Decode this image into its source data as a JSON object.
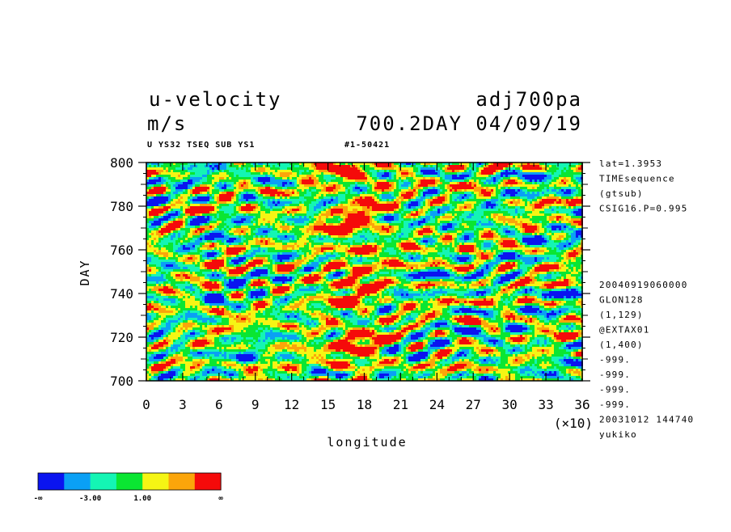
{
  "title_left": "u-velocity",
  "title_right": "adj700pa",
  "units": "m/s",
  "time_label": "700.2DAY 04/09/19",
  "sub_left": "U YS32 TSEQ SUB YS1",
  "sub_right": "#1-50421",
  "info_lines": [
    "lat=1.3953",
    "TIMEsequence",
    "(gtsub)",
    "CSIG16.P=0.995"
  ],
  "info_lines2": [
    "20040919060000",
    "GLON128",
    "(1,129)",
    "@EXTAX01",
    "(1,400)",
    "-999.",
    "-999.",
    "-999.",
    "-999.",
    "20031012 144740",
    "yukiko"
  ],
  "colorbar": {
    "colors": [
      "#0a14f0",
      "#0aa0f5",
      "#14f5b4",
      "#0ae632",
      "#f5f514",
      "#fba50a",
      "#f50a0a"
    ],
    "labels": [
      "-∞",
      "-3.00",
      "1.00",
      "∞"
    ]
  },
  "chart_data": {
    "type": "heatmap",
    "title": "u-velocity",
    "xlabel": "longitude",
    "ylabel": "DAY",
    "x_multiplier_label": "(×10)",
    "xlim": [
      0,
      36
    ],
    "ylim": [
      700,
      800
    ],
    "x_ticks": [
      "0",
      "3",
      "6",
      "9",
      "12",
      "15",
      "18",
      "21",
      "24",
      "27",
      "30",
      "33",
      "36"
    ],
    "y_ticks": [
      "700",
      "720",
      "740",
      "760",
      "780",
      "800"
    ],
    "z_levels": [
      -3.0,
      1.0
    ],
    "note": "Hovmoller field of u-velocity; values mostly between -3 and 1 (green/cyan) with positive bands (red/orange) concentrated near longitude 150-190 and negative patches (blue) scattered."
  }
}
